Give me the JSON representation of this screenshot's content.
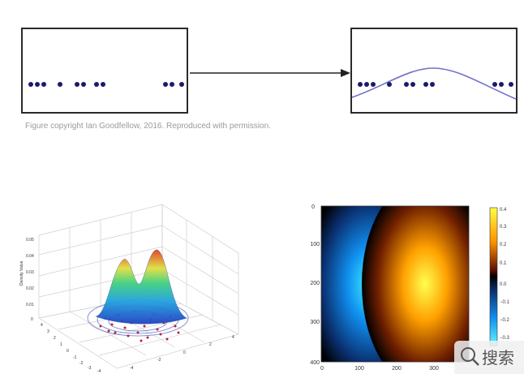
{
  "caption": "Figure copyright Ian Goodfellow, 2016. Reproduced with permission.",
  "watermark": {
    "text": "搜索"
  },
  "dots_x": [
    0.05,
    0.09,
    0.13,
    0.23,
    0.33,
    0.37,
    0.45,
    0.49,
    0.87,
    0.91,
    0.97
  ],
  "colors": {
    "dot": "#1a1a6e",
    "curve": "#7070c8",
    "arrow": "#222222"
  },
  "surface_plot": {
    "zlabel": "Density Value",
    "z_ticks": [
      "0.05",
      "0.04",
      "0.03",
      "0.02",
      "0.01",
      "0"
    ],
    "x_ticks": [
      "-4",
      "-2",
      "0",
      "2",
      "4"
    ],
    "y_ticks": [
      "4",
      "3",
      "2",
      "1",
      "0",
      "-1",
      "-2",
      "-3",
      "-4"
    ]
  },
  "heatmap": {
    "x_ticks": [
      "0",
      "100",
      "200",
      "300"
    ],
    "y_ticks": [
      "0",
      "100",
      "200",
      "300",
      "400"
    ],
    "colorbar_ticks": [
      "0.4",
      "0.3",
      "0.2",
      "0.1",
      "0.0",
      "−0.1",
      "−0.2",
      "−0.3"
    ]
  }
}
